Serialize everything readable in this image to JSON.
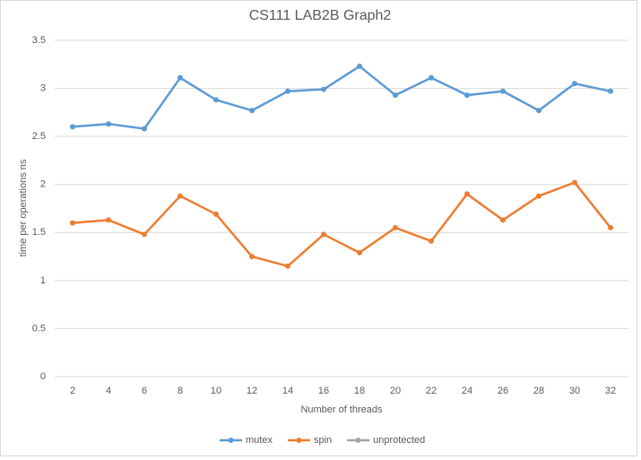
{
  "chart_data": {
    "type": "line",
    "title": "CS111 LAB2B Graph2",
    "x_label": "Number of threads",
    "y_label": "time per operations ns",
    "categories": [
      "2",
      "4",
      "6",
      "8",
      "10",
      "12",
      "14",
      "16",
      "18",
      "20",
      "22",
      "24",
      "26",
      "28",
      "30",
      "32"
    ],
    "series": [
      {
        "name": "mutex",
        "color": "#5b9bd5",
        "values": [
          2.6,
          2.63,
          2.58,
          3.11,
          2.88,
          2.77,
          2.97,
          2.99,
          3.23,
          2.93,
          3.11,
          2.93,
          2.97,
          2.77,
          3.05,
          2.97
        ]
      },
      {
        "name": "spin",
        "color": "#ed7d31",
        "values": [
          1.6,
          1.63,
          1.48,
          1.88,
          1.69,
          1.25,
          1.15,
          1.48,
          1.29,
          1.55,
          1.41,
          1.9,
          1.63,
          1.88,
          2.02,
          1.55
        ]
      },
      {
        "name": "unprotected",
        "color": "#a5a5a5",
        "values": [
          null,
          null,
          null,
          null,
          null,
          null,
          null,
          null,
          null,
          null,
          null,
          null,
          null,
          null,
          null,
          null
        ]
      }
    ],
    "ylim": [
      0,
      3.5
    ],
    "yticks": [
      0,
      0.5,
      1,
      1.5,
      2,
      2.5,
      3,
      3.5
    ],
    "grid": true,
    "legend": "bottom"
  }
}
